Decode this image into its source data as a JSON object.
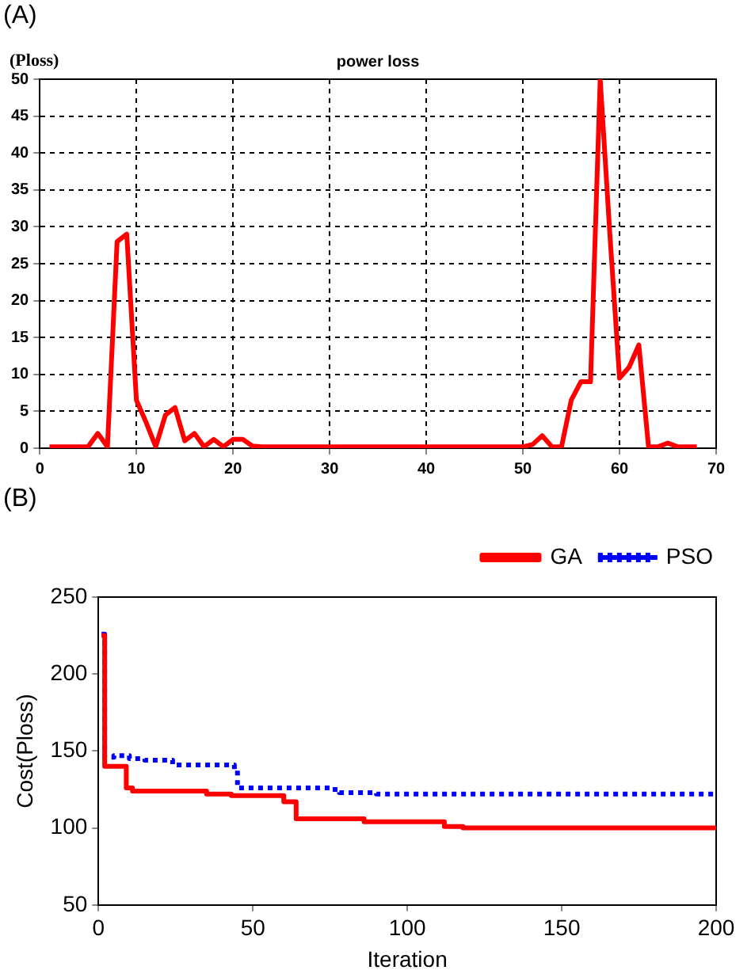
{
  "chart_data": [
    {
      "type": "line",
      "title": "power loss",
      "ylabel": "(Ploss)",
      "annotations": [
        "(A)"
      ],
      "xlim": [
        0,
        70
      ],
      "xticks": [
        0,
        10,
        20,
        30,
        40,
        50,
        60,
        70
      ],
      "ylim": [
        0,
        50
      ],
      "yticks": [
        0,
        5,
        10,
        15,
        20,
        25,
        30,
        35,
        40,
        45,
        50
      ],
      "grid": true,
      "legend": false,
      "marker": "none",
      "series": [
        {
          "color": "#ff0000",
          "line_style": "solid",
          "x": [
            1,
            5,
            6,
            7,
            8,
            9,
            10,
            11,
            12,
            13,
            14,
            15,
            16,
            17,
            18,
            19,
            20,
            21,
            22,
            23,
            50,
            51,
            52,
            53,
            54,
            55,
            56,
            57,
            58,
            59,
            60,
            61,
            62,
            63,
            64,
            65,
            66,
            68
          ],
          "values": [
            0.2,
            0.2,
            2,
            0.2,
            28,
            29,
            6.5,
            3.5,
            0.2,
            4.5,
            5.5,
            1,
            2,
            0.2,
            1.2,
            0.2,
            1.2,
            1.2,
            0.3,
            0.2,
            0.2,
            0.5,
            1.7,
            0.2,
            0.2,
            6.5,
            9,
            9,
            50,
            29,
            9.5,
            11,
            14,
            0.2,
            0.2,
            0.7,
            0.2,
            0.2
          ]
        }
      ]
    },
    {
      "type": "step",
      "xlabel": "Iteration",
      "ylabel": "Cost(Ploss)",
      "annotations": [
        "(B)"
      ],
      "xlim": [
        0,
        200
      ],
      "xticks": [
        0,
        50,
        100,
        150,
        200
      ],
      "ylim": [
        50,
        250
      ],
      "yticks": [
        50,
        100,
        150,
        200,
        250
      ],
      "grid": false,
      "legend": "top right",
      "marker": "none",
      "series": [
        {
          "name": "GA",
          "color": "#ff0000",
          "line_style": "solid",
          "x": [
            1,
            2,
            9,
            11,
            35,
            43,
            60,
            64,
            86,
            112,
            118,
            200
          ],
          "values": [
            225,
            140,
            126,
            124,
            122,
            121,
            117,
            106,
            104,
            101,
            100,
            100
          ]
        },
        {
          "name": "PSO",
          "color": "#0000ff",
          "line_style": "dotted",
          "x": [
            1,
            2,
            5,
            10,
            15,
            24,
            44,
            45,
            75,
            78,
            90,
            200
          ],
          "values": [
            226,
            146,
            147,
            145,
            144,
            141,
            138,
            126,
            125,
            123,
            122,
            122
          ]
        }
      ]
    }
  ]
}
